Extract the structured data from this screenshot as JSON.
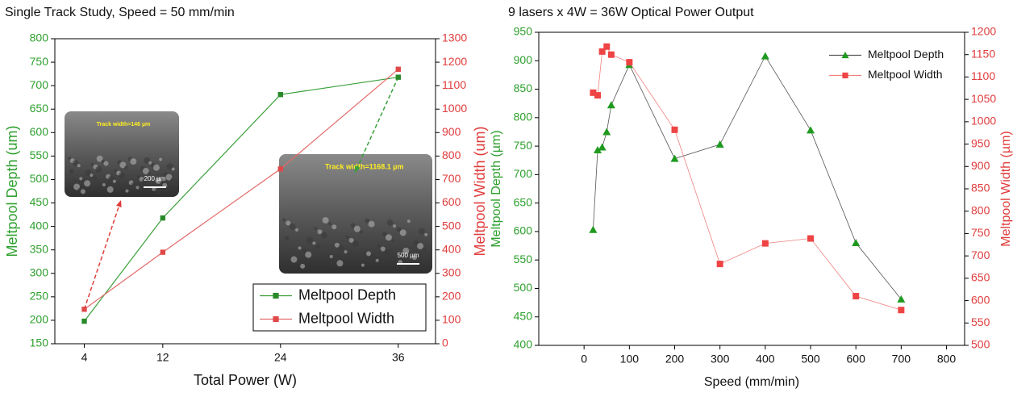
{
  "chart_data": [
    {
      "type": "line",
      "title": "Single Track Study, Speed = 50 mm/min",
      "x_label": "Total Power (W)",
      "y_label": "Meltpool Depth (um)",
      "y2_label": "Meltpool Width (um)",
      "x": [
        4,
        12,
        24,
        36
      ],
      "xlim": [
        1,
        39.8
      ],
      "xticks": [
        4,
        12,
        24,
        36
      ],
      "ylim": [
        150,
        800
      ],
      "yticks": [
        150,
        200,
        250,
        300,
        350,
        400,
        450,
        500,
        550,
        600,
        650,
        700,
        750,
        800
      ],
      "y2lim": [
        0,
        1300
      ],
      "y2ticks": [
        0,
        100,
        200,
        300,
        400,
        500,
        600,
        700,
        800,
        900,
        1000,
        1100,
        1200,
        1300
      ],
      "y_color": "#2ea02e",
      "y2_color": "#e03c3c",
      "grid": false,
      "legend": "lower right",
      "series": [
        {
          "name": "Meltpool Depth",
          "color": "#2a8a2a",
          "line_color": "#3aa03a",
          "marker": "square",
          "values": [
            198,
            418,
            681,
            718
          ]
        },
        {
          "name": "Meltpool Width",
          "color": "#e04848",
          "line_color": "#e46a6a",
          "marker": "square",
          "axis": "y2",
          "values": [
            147,
            390,
            745,
            1170
          ]
        }
      ],
      "insets": [
        {
          "label": "Track width=146 µm",
          "scale": "200 µm"
        },
        {
          "label": "Track width=1168.1 µm",
          "scale": "500 µm"
        }
      ]
    },
    {
      "type": "line",
      "title": "9 lasers x 4W = 36W Optical Power Output",
      "x_label": "Speed (mm/min)",
      "y_label": "Meltpool Depth (µm)",
      "y2_label": "Meltpool Width (µm)",
      "x": [
        20,
        30,
        40,
        50,
        60,
        100,
        200,
        300,
        400,
        500,
        600,
        700
      ],
      "xlim": [
        -100,
        840
      ],
      "xticks": [
        0,
        100,
        200,
        300,
        400,
        500,
        600,
        700,
        800
      ],
      "ylim": [
        400,
        950
      ],
      "yticks": [
        400,
        450,
        500,
        550,
        600,
        650,
        700,
        750,
        800,
        850,
        900,
        950
      ],
      "y2lim": [
        500,
        1200
      ],
      "y2ticks": [
        500,
        550,
        600,
        650,
        700,
        750,
        800,
        850,
        900,
        950,
        1000,
        1050,
        1100,
        1150,
        1200
      ],
      "y_color": "#2ea02e",
      "y2_color": "#e03c3c",
      "grid": false,
      "legend": "upper right",
      "series": [
        {
          "name": "Meltpool Depth",
          "color": "#1f9a1f",
          "line_color": "#555555",
          "marker": "triangle",
          "values": [
            603,
            743,
            748,
            775,
            822,
            893,
            728,
            753,
            908,
            778,
            580,
            481
          ]
        },
        {
          "name": "Meltpool Width",
          "color": "#ee4444",
          "line_color": "#f08080",
          "marker": "square",
          "axis": "y2",
          "values": [
            1065,
            1059,
            1157,
            1168,
            1150,
            1133,
            982,
            682,
            728,
            739,
            610,
            579
          ]
        }
      ]
    }
  ]
}
